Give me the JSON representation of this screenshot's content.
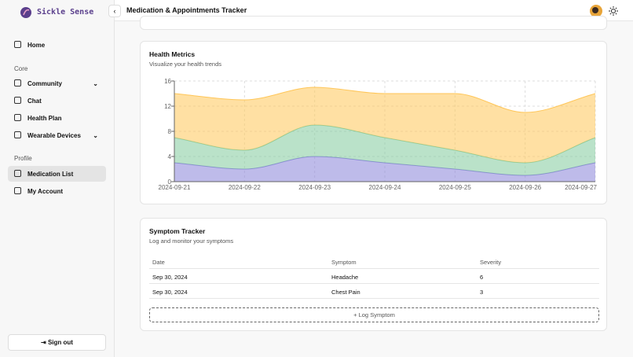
{
  "sidebar": {
    "brand": "Sickle Sense",
    "top": [
      "Home"
    ],
    "core": {
      "heading": "Core",
      "items": [
        "Community",
        "Chat",
        "Health Plan",
        "Wearable Devices"
      ]
    },
    "profile": {
      "heading": "Profile",
      "items": [
        "Medication List",
        "My Account"
      ]
    },
    "sign_out": "Sign out"
  },
  "header": {
    "title": "Medication & Appointments Tracker"
  },
  "chart_data": {
    "type": "area",
    "stacked": true,
    "title": "Health Metrics",
    "subtitle": "Visualize your health trends",
    "x": [
      "2024-09-21",
      "2024-09-22",
      "2024-09-23",
      "2024-09-24",
      "2024-09-25",
      "2024-09-26",
      "2024-09-27"
    ],
    "series": [
      {
        "color": "#8884d8",
        "values": [
          3,
          2,
          4,
          3,
          2,
          1,
          3
        ]
      },
      {
        "color": "#82ca9d",
        "values": [
          4,
          3,
          5,
          4,
          3,
          2,
          4
        ]
      },
      {
        "color": "#ffc658",
        "values": [
          7,
          8,
          6,
          7,
          9,
          8,
          7
        ]
      }
    ],
    "ylim": [
      0,
      16
    ],
    "yticks": [
      0,
      4,
      8,
      12,
      16
    ],
    "grid": true
  },
  "symptom_card": {
    "title": "Symptom Tracker",
    "subtitle": "Log and monitor your symptoms",
    "table": {
      "columns": [
        "Date",
        "Symptom",
        "Severity"
      ],
      "rows": [
        [
          "Sep 30, 2024",
          "Headache",
          6
        ],
        [
          "Sep 30, 2024",
          "Chest Pain",
          3
        ]
      ]
    },
    "button": "Log Symptom"
  }
}
